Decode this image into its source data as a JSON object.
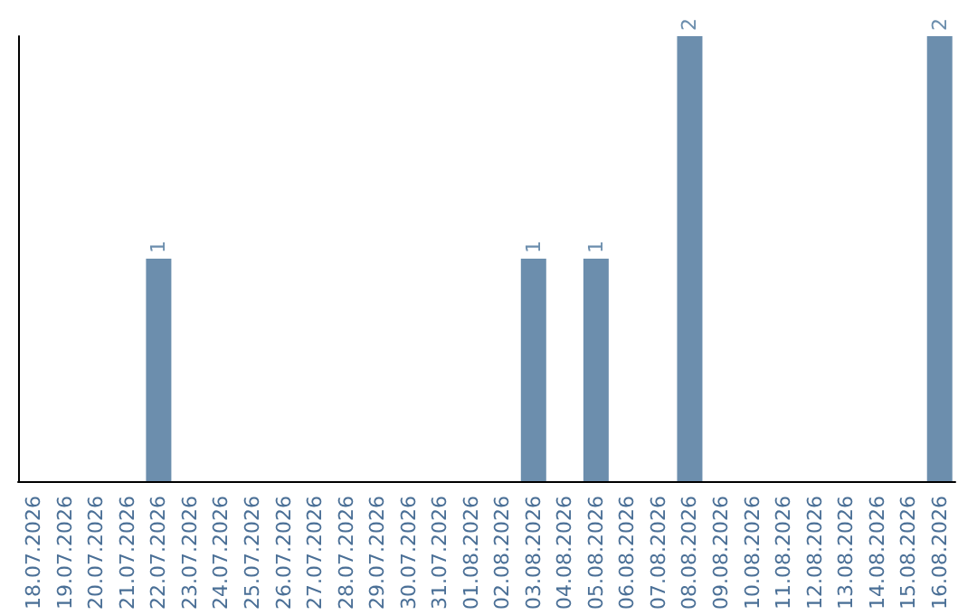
{
  "chart_data": {
    "type": "bar",
    "categories": [
      "18.07.2026",
      "19.07.2026",
      "20.07.2026",
      "21.07.2026",
      "22.07.2026",
      "23.07.2026",
      "24.07.2026",
      "25.07.2026",
      "26.07.2026",
      "27.07.2026",
      "28.07.2026",
      "29.07.2026",
      "30.07.2026",
      "31.07.2026",
      "01.08.2026",
      "02.08.2026",
      "03.08.2026",
      "04.08.2026",
      "05.08.2026",
      "06.08.2026",
      "07.08.2026",
      "08.08.2026",
      "09.08.2026",
      "10.08.2026",
      "11.08.2026",
      "12.08.2026",
      "13.08.2026",
      "14.08.2026",
      "15.08.2026",
      "16.08.2026"
    ],
    "values": [
      0,
      0,
      0,
      0,
      1,
      0,
      0,
      0,
      0,
      0,
      0,
      0,
      0,
      0,
      0,
      0,
      1,
      0,
      1,
      0,
      0,
      2,
      0,
      0,
      0,
      0,
      0,
      0,
      0,
      2
    ],
    "value_labels": [
      null,
      null,
      null,
      null,
      "1",
      null,
      null,
      null,
      null,
      null,
      null,
      null,
      null,
      null,
      null,
      null,
      "1",
      null,
      "1",
      null,
      null,
      "2",
      null,
      null,
      null,
      null,
      null,
      null,
      null,
      "2"
    ],
    "color": "#6c8ead",
    "ylim": [
      0,
      2
    ],
    "tick_labels": "x"
  }
}
